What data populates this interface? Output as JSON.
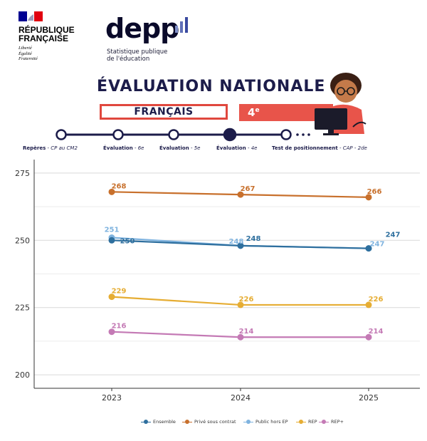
{
  "header": {
    "republic_name": "RÉPUBLIQUE\nFRANÇAISE",
    "republic_motto": "Liberté\nÉgalité\nFraternité",
    "depp_logo": "depp",
    "depp_subtitle": "Statistique publique\nde l'éducation",
    "evaluation_title": "ÉVALUATION NATIONALE",
    "subject": "FRANÇAIS",
    "grade": "4e",
    "colors": {
      "title_navy": "#1c1c4a",
      "accent_red": "#e0483e",
      "flag_blue": "#000091",
      "flag_red": "#e1000f"
    }
  },
  "timeline": {
    "steps": [
      {
        "title": "Repères",
        "detail": "CP au CM2",
        "active": false
      },
      {
        "title": "Évaluation",
        "detail": "6e",
        "active": false
      },
      {
        "title": "Évaluation",
        "detail": "5e",
        "active": false
      },
      {
        "title": "Évaluation",
        "detail": "4e",
        "active": true
      },
      {
        "title": "Test de positionnement",
        "detail": "CAP - 2de",
        "active": false
      }
    ]
  },
  "chart_data": {
    "type": "line",
    "title": "",
    "xlabel": "",
    "ylabel": "",
    "x": [
      "2023",
      "2024",
      "2025"
    ],
    "ylim": [
      195,
      280
    ],
    "yticks": [
      200,
      225,
      250,
      275
    ],
    "grid": true,
    "legend_position": "bottom",
    "series": [
      {
        "name": "Ensemble",
        "color": "#2e6f9e",
        "values": [
          250,
          248,
          247
        ]
      },
      {
        "name": "Privé sous contrat",
        "color": "#c8702c",
        "values": [
          268,
          267,
          266
        ]
      },
      {
        "name": "Public hors EP",
        "color": "#7fb3df",
        "values": [
          251,
          248,
          247
        ]
      },
      {
        "name": "REP",
        "color": "#e6ad33",
        "values": [
          229,
          226,
          226
        ]
      },
      {
        "name": "REP+",
        "color": "#c47ab5",
        "values": [
          216,
          214,
          214
        ]
      }
    ]
  }
}
